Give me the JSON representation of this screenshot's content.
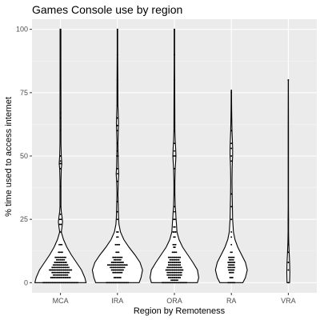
{
  "chart_data": {
    "type": "violin",
    "title": "Games Console use by region",
    "xlabel": "Region by Remoteness",
    "ylabel": "% time used to access internet",
    "categories": [
      "MCA",
      "IRA",
      "ORA",
      "RA",
      "VRA"
    ],
    "ylim": [
      -4,
      104
    ],
    "yticks": [
      0,
      25,
      50,
      75,
      100
    ],
    "grid": true,
    "legend": "none",
    "colors": {
      "panel": "#ebebeb",
      "grid_major": "#ffffff",
      "grid_minor": "#f5f5f5",
      "violin_fill": "#ffffff",
      "outline": "#000000",
      "tick_text": "#4d4d4d"
    },
    "violins": [
      {
        "category": "MCA",
        "profile": [
          [
            0,
            1.0
          ],
          [
            2,
            0.95
          ],
          [
            5,
            0.82
          ],
          [
            8,
            0.62
          ],
          [
            11,
            0.42
          ],
          [
            14,
            0.25
          ],
          [
            17,
            0.12
          ],
          [
            19,
            0.06
          ],
          [
            20,
            0.03
          ],
          [
            22,
            0.06
          ],
          [
            24,
            0.08
          ],
          [
            26,
            0.06
          ],
          [
            28,
            0.03
          ],
          [
            30,
            0.02
          ],
          [
            40,
            0.02
          ],
          [
            45,
            0.03
          ],
          [
            47,
            0.05
          ],
          [
            50,
            0.03
          ],
          [
            55,
            0.02
          ],
          [
            65,
            0.02
          ],
          [
            70,
            0.02
          ],
          [
            85,
            0.015
          ],
          [
            100,
            0.015
          ]
        ],
        "points": [
          {
            "y": 0,
            "n": 28
          },
          {
            "y": 2,
            "n": 16
          },
          {
            "y": 3,
            "n": 12
          },
          {
            "y": 4,
            "n": 14
          },
          {
            "y": 5,
            "n": 18
          },
          {
            "y": 6,
            "n": 14
          },
          {
            "y": 7,
            "n": 12
          },
          {
            "y": 8,
            "n": 10
          },
          {
            "y": 9,
            "n": 7
          },
          {
            "y": 10,
            "n": 9
          },
          {
            "y": 12,
            "n": 4
          },
          {
            "y": 15,
            "n": 3
          },
          {
            "y": 20,
            "n": 2
          },
          {
            "y": 23,
            "n": 2
          },
          {
            "y": 25,
            "n": 2
          },
          {
            "y": 27,
            "n": 1
          },
          {
            "y": 30,
            "n": 1
          },
          {
            "y": 38,
            "n": 1
          },
          {
            "y": 45,
            "n": 1
          },
          {
            "y": 47,
            "n": 2
          },
          {
            "y": 48,
            "n": 1
          },
          {
            "y": 50,
            "n": 1
          },
          {
            "y": 60,
            "n": 1
          },
          {
            "y": 65,
            "n": 1
          },
          {
            "y": 67,
            "n": 1
          },
          {
            "y": 80,
            "n": 1
          },
          {
            "y": 85,
            "n": 1
          },
          {
            "y": 90,
            "n": 1
          },
          {
            "y": 95,
            "n": 1
          },
          {
            "y": 100,
            "n": 1
          }
        ]
      },
      {
        "category": "IRA",
        "profile": [
          [
            0,
            0.85
          ],
          [
            2,
            0.92
          ],
          [
            5,
            0.98
          ],
          [
            8,
            0.88
          ],
          [
            11,
            0.68
          ],
          [
            14,
            0.45
          ],
          [
            17,
            0.25
          ],
          [
            20,
            0.12
          ],
          [
            23,
            0.06
          ],
          [
            26,
            0.04
          ],
          [
            30,
            0.03
          ],
          [
            35,
            0.02
          ],
          [
            40,
            0.03
          ],
          [
            43,
            0.05
          ],
          [
            46,
            0.03
          ],
          [
            50,
            0.025
          ],
          [
            55,
            0.02
          ],
          [
            60,
            0.03
          ],
          [
            63,
            0.04
          ],
          [
            66,
            0.03
          ],
          [
            70,
            0.02
          ],
          [
            80,
            0.015
          ],
          [
            90,
            0.01
          ],
          [
            100,
            0.01
          ]
        ],
        "points": [
          {
            "y": 0,
            "n": 18
          },
          {
            "y": 2,
            "n": 6
          },
          {
            "y": 4,
            "n": 8
          },
          {
            "y": 5,
            "n": 10
          },
          {
            "y": 6,
            "n": 12
          },
          {
            "y": 7,
            "n": 16
          },
          {
            "y": 8,
            "n": 10
          },
          {
            "y": 9,
            "n": 6
          },
          {
            "y": 10,
            "n": 8
          },
          {
            "y": 12,
            "n": 3
          },
          {
            "y": 15,
            "n": 4
          },
          {
            "y": 18,
            "n": 2
          },
          {
            "y": 20,
            "n": 2
          },
          {
            "y": 25,
            "n": 1
          },
          {
            "y": 28,
            "n": 1
          },
          {
            "y": 32,
            "n": 1
          },
          {
            "y": 40,
            "n": 1
          },
          {
            "y": 43,
            "n": 1
          },
          {
            "y": 45,
            "n": 1
          },
          {
            "y": 50,
            "n": 2
          },
          {
            "y": 52,
            "n": 1
          },
          {
            "y": 55,
            "n": 1
          },
          {
            "y": 60,
            "n": 1
          },
          {
            "y": 62,
            "n": 1
          },
          {
            "y": 65,
            "n": 1
          },
          {
            "y": 70,
            "n": 1
          },
          {
            "y": 80,
            "n": 1
          },
          {
            "y": 90,
            "n": 1
          },
          {
            "y": 100,
            "n": 1
          }
        ]
      },
      {
        "category": "ORA",
        "profile": [
          [
            0,
            0.9
          ],
          [
            2,
            0.95
          ],
          [
            5,
            0.9
          ],
          [
            8,
            0.72
          ],
          [
            11,
            0.52
          ],
          [
            14,
            0.32
          ],
          [
            17,
            0.18
          ],
          [
            20,
            0.1
          ],
          [
            23,
            0.08
          ],
          [
            26,
            0.06
          ],
          [
            28,
            0.05
          ],
          [
            30,
            0.03
          ],
          [
            35,
            0.02
          ],
          [
            40,
            0.02
          ],
          [
            45,
            0.03
          ],
          [
            48,
            0.05
          ],
          [
            50,
            0.06
          ],
          [
            53,
            0.05
          ],
          [
            56,
            0.03
          ],
          [
            60,
            0.02
          ],
          [
            70,
            0.015
          ],
          [
            85,
            0.01
          ],
          [
            100,
            0.01
          ]
        ],
        "points": [
          {
            "y": 0,
            "n": 20
          },
          {
            "y": 1,
            "n": 6
          },
          {
            "y": 2,
            "n": 10
          },
          {
            "y": 3,
            "n": 12
          },
          {
            "y": 4,
            "n": 12
          },
          {
            "y": 5,
            "n": 14
          },
          {
            "y": 6,
            "n": 12
          },
          {
            "y": 7,
            "n": 10
          },
          {
            "y": 8,
            "n": 10
          },
          {
            "y": 9,
            "n": 8
          },
          {
            "y": 10,
            "n": 10
          },
          {
            "y": 12,
            "n": 4
          },
          {
            "y": 14,
            "n": 2
          },
          {
            "y": 15,
            "n": 3
          },
          {
            "y": 18,
            "n": 2
          },
          {
            "y": 20,
            "n": 3
          },
          {
            "y": 22,
            "n": 2
          },
          {
            "y": 25,
            "n": 2
          },
          {
            "y": 28,
            "n": 1
          },
          {
            "y": 30,
            "n": 1
          },
          {
            "y": 35,
            "n": 1
          },
          {
            "y": 40,
            "n": 1
          },
          {
            "y": 45,
            "n": 1
          },
          {
            "y": 50,
            "n": 3
          },
          {
            "y": 52,
            "n": 1
          },
          {
            "y": 55,
            "n": 1
          },
          {
            "y": 60,
            "n": 1
          },
          {
            "y": 65,
            "n": 1
          },
          {
            "y": 75,
            "n": 1
          },
          {
            "y": 80,
            "n": 1
          },
          {
            "y": 90,
            "n": 1
          },
          {
            "y": 100,
            "n": 1
          }
        ]
      },
      {
        "category": "RA",
        "profile": [
          [
            0,
            0.45
          ],
          [
            2,
            0.55
          ],
          [
            5,
            0.62
          ],
          [
            8,
            0.55
          ],
          [
            11,
            0.4
          ],
          [
            14,
            0.25
          ],
          [
            17,
            0.14
          ],
          [
            20,
            0.08
          ],
          [
            25,
            0.05
          ],
          [
            30,
            0.04
          ],
          [
            35,
            0.03
          ],
          [
            40,
            0.025
          ],
          [
            45,
            0.03
          ],
          [
            48,
            0.04
          ],
          [
            50,
            0.05
          ],
          [
            53,
            0.05
          ],
          [
            56,
            0.04
          ],
          [
            60,
            0.025
          ],
          [
            65,
            0.015
          ],
          [
            70,
            0.01
          ],
          [
            76,
            0.005
          ]
        ],
        "points": [
          {
            "y": 0,
            "n": 6
          },
          {
            "y": 2,
            "n": 3
          },
          {
            "y": 4,
            "n": 4
          },
          {
            "y": 5,
            "n": 5
          },
          {
            "y": 6,
            "n": 6
          },
          {
            "y": 7,
            "n": 5
          },
          {
            "y": 8,
            "n": 6
          },
          {
            "y": 9,
            "n": 4
          },
          {
            "y": 10,
            "n": 5
          },
          {
            "y": 12,
            "n": 2
          },
          {
            "y": 15,
            "n": 1
          },
          {
            "y": 18,
            "n": 1
          },
          {
            "y": 20,
            "n": 1
          },
          {
            "y": 25,
            "n": 1
          },
          {
            "y": 30,
            "n": 1
          },
          {
            "y": 35,
            "n": 1
          },
          {
            "y": 48,
            "n": 1
          },
          {
            "y": 50,
            "n": 1
          },
          {
            "y": 53,
            "n": 1
          },
          {
            "y": 55,
            "n": 1
          },
          {
            "y": 60,
            "n": 1
          },
          {
            "y": 75,
            "n": 1
          }
        ]
      },
      {
        "category": "VRA",
        "profile": [
          [
            0,
            0.05
          ],
          [
            4,
            0.06
          ],
          [
            8,
            0.05
          ],
          [
            12,
            0.03
          ],
          [
            16,
            0.015
          ],
          [
            20,
            0.008
          ],
          [
            25,
            0.01
          ],
          [
            30,
            0.006
          ],
          [
            40,
            0.005
          ],
          [
            60,
            0.005
          ],
          [
            80,
            0.004
          ]
        ],
        "points": [
          {
            "y": 0,
            "n": 1
          },
          {
            "y": 5,
            "n": 1
          },
          {
            "y": 8,
            "n": 1
          },
          {
            "y": 12,
            "n": 1
          },
          {
            "y": 15,
            "n": 1
          },
          {
            "y": 25,
            "n": 1
          },
          {
            "y": 80,
            "n": 1
          }
        ]
      }
    ]
  }
}
